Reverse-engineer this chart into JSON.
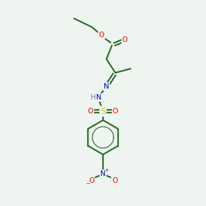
{
  "bg_color": "#eef5f0",
  "bond_color": "#2d6b2d",
  "atom_colors": {
    "O": "#ff0000",
    "N": "#0000cc",
    "S": "#cccc00",
    "H": "#708090",
    "C": "#2d6b2d"
  },
  "bg_color_hex": "#eef5f0"
}
